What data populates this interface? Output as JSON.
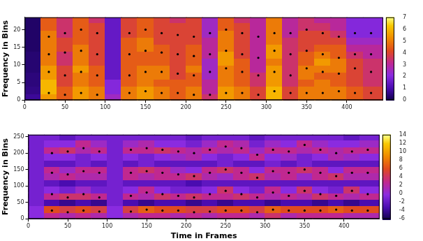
{
  "chart_data": [
    {
      "type": "heatmap",
      "ylabel": "Frequency in Bins",
      "grid": false,
      "xlim": [
        0,
        445
      ],
      "xticks": [
        0,
        50,
        100,
        150,
        200,
        250,
        300,
        350,
        400
      ],
      "ylim": [
        0,
        23.5
      ],
      "yticks": [
        0,
        5,
        10,
        15,
        20
      ],
      "heatmap": {
        "x_edges": [
          0,
          20,
          40,
          60,
          80,
          100,
          120,
          140,
          160,
          180,
          200,
          220,
          240,
          260,
          280,
          300,
          320,
          340,
          360,
          380,
          400,
          420,
          445
        ],
        "y_edges": [
          0,
          2,
          4,
          6,
          8,
          10,
          12,
          14,
          16,
          18,
          20,
          22,
          23.5
        ],
        "z": [
          [
            0.8,
            5.5,
            4.5,
            5.5,
            5,
            2.5,
            5,
            5.5,
            5,
            4.5,
            5,
            3.5,
            5.5,
            5,
            4,
            6,
            4,
            5,
            5,
            5,
            4.5,
            4
          ],
          [
            0.6,
            6,
            4.5,
            5.5,
            5,
            2,
            5,
            5.5,
            5,
            4.5,
            5,
            3,
            5.5,
            5,
            4,
            6,
            4,
            5,
            5,
            5,
            4.5,
            4
          ],
          [
            0.5,
            6,
            4,
            5,
            4.5,
            2,
            4.5,
            5,
            4.5,
            4.5,
            4.5,
            3,
            5,
            4.5,
            3.5,
            5.5,
            3.5,
            4.5,
            5,
            4.5,
            4,
            3.5
          ],
          [
            0.5,
            5.5,
            4,
            5,
            4.5,
            1.5,
            4.5,
            5,
            5,
            4,
            4.5,
            2.5,
            5,
            4.5,
            3.5,
            5.5,
            3.5,
            5,
            4.5,
            4.5,
            4,
            3.5
          ],
          [
            0.4,
            5.5,
            4,
            5.5,
            4.5,
            1.5,
            4.5,
            5,
            5,
            4,
            5,
            2.5,
            5,
            4.5,
            3,
            5.5,
            3.5,
            5,
            5,
            5,
            4,
            3.5
          ],
          [
            0.4,
            5,
            3.5,
            5,
            4,
            1.5,
            4.5,
            4.5,
            4.5,
            4,
            4.5,
            2.5,
            5.5,
            4.5,
            3,
            5,
            3.5,
            4.5,
            5.5,
            5,
            4,
            3.5
          ],
          [
            0.4,
            5,
            3.5,
            5,
            4,
            1.5,
            4.5,
            4.5,
            4.5,
            4,
            4.5,
            3,
            5.5,
            4,
            3,
            5.5,
            3.5,
            4.5,
            5,
            4.5,
            3.5,
            3
          ],
          [
            0.3,
            5,
            4,
            5,
            4,
            1.5,
            4.5,
            5,
            4.5,
            4,
            4.5,
            3,
            5,
            4,
            3,
            5.5,
            3.5,
            4,
            4.5,
            4.5,
            3,
            3
          ],
          [
            0.3,
            5,
            4,
            4.5,
            4,
            1.5,
            4.5,
            5,
            4,
            4,
            4,
            3,
            5,
            4,
            3,
            5,
            3.5,
            4,
            4,
            4,
            2.5,
            2.5
          ],
          [
            0.3,
            5,
            3.5,
            4.5,
            4,
            1.5,
            4,
            4.5,
            4,
            4,
            4,
            2.5,
            5,
            4,
            3,
            5,
            3,
            4,
            4,
            3.5,
            2,
            2
          ],
          [
            0.3,
            4.5,
            3.5,
            4.5,
            4,
            1.5,
            4,
            4.5,
            4,
            4,
            4,
            2.5,
            4.5,
            4,
            3,
            5,
            3,
            3.5,
            3.5,
            3,
            2,
            2
          ],
          [
            0.3,
            4.5,
            3.5,
            4.5,
            3.5,
            1.5,
            4,
            4.5,
            4,
            3.5,
            4,
            2.5,
            4.5,
            3.5,
            3,
            5,
            3,
            3.5,
            3,
            3,
            2,
            2
          ]
        ],
        "range": [
          0,
          7
        ],
        "ticks": [
          0,
          1,
          2,
          3,
          4,
          5,
          6,
          7
        ]
      },
      "x": [
        10,
        30,
        50,
        70,
        90,
        110,
        130,
        150,
        170,
        190,
        210,
        230,
        250,
        270,
        290,
        310,
        330,
        350,
        370,
        390,
        410,
        430
      ],
      "series": [
        {
          "color": "#000000",
          "marker": "dot",
          "values": [
            null,
            2,
            1.5,
            2,
            1.5,
            null,
            2,
            2.5,
            2,
            2,
            1.5,
            1.5,
            2,
            2,
            1.5,
            2.5,
            2,
            2,
            2,
            2.5,
            2,
            2
          ]
        },
        {
          "color": "#000000",
          "marker": "dot",
          "values": [
            null,
            8,
            7,
            8,
            7,
            null,
            7,
            8,
            8,
            7.5,
            7,
            8,
            9,
            8,
            7,
            8,
            7,
            9,
            8,
            7.5,
            9,
            8
          ]
        },
        {
          "color": "#000000",
          "marker": "dot",
          "values": [
            null,
            13,
            13.5,
            14,
            13,
            null,
            13,
            14,
            13.5,
            13,
            12.5,
            13,
            14,
            13,
            12,
            14,
            13,
            14,
            13,
            12,
            13,
            13
          ]
        },
        {
          "color": "#000000",
          "marker": "dot",
          "values": [
            null,
            18,
            19,
            20,
            19,
            null,
            19,
            20,
            19,
            18.5,
            18,
            19,
            20,
            19,
            18,
            19,
            19,
            20,
            19,
            18,
            19,
            19
          ]
        }
      ]
    },
    {
      "type": "heatmap",
      "ylabel": "Frequency in Bins",
      "xlabel": "Time in Frames",
      "grid": false,
      "xlim": [
        0,
        445
      ],
      "xticks": [
        0,
        50,
        100,
        150,
        200,
        250,
        300,
        350,
        400
      ],
      "ylim": [
        0,
        256
      ],
      "yticks": [
        0,
        50,
        100,
        150,
        200,
        250
      ],
      "heatmap": {
        "x_edges": [
          0,
          20,
          40,
          60,
          80,
          100,
          120,
          140,
          160,
          180,
          200,
          220,
          240,
          260,
          280,
          300,
          320,
          340,
          360,
          380,
          400,
          420,
          445
        ],
        "y_edges": [
          0,
          20,
          40,
          60,
          80,
          100,
          120,
          140,
          160,
          180,
          200,
          220,
          240,
          256
        ],
        "z": [
          [
            0,
            3,
            2,
            3,
            2,
            0,
            2,
            3,
            3,
            2,
            3,
            2,
            3,
            3,
            2,
            4,
            2,
            3,
            3,
            3,
            2,
            2
          ],
          [
            0,
            6,
            5,
            6,
            5,
            0,
            5,
            7,
            6,
            6,
            5,
            5,
            6,
            6,
            5,
            7,
            6,
            6,
            6,
            7,
            6,
            6
          ],
          [
            -1,
            -3,
            -4,
            -3,
            -4,
            -1,
            -3,
            -4,
            -3,
            -3,
            -4,
            -3,
            -4,
            -3,
            -3,
            -4,
            -3,
            -3,
            -4,
            -3,
            -4,
            -3
          ],
          [
            -1,
            3,
            4,
            4,
            3,
            -1,
            3,
            2,
            4,
            3,
            4,
            3,
            3,
            4,
            3,
            2,
            3,
            2,
            4,
            3,
            2,
            3
          ],
          [
            -1,
            0,
            -1,
            1,
            -1,
            -1,
            0,
            3,
            0,
            -1,
            -1,
            0,
            4,
            0,
            -1,
            3,
            0,
            4,
            0,
            -1,
            4,
            0
          ],
          [
            -1,
            -2,
            -3,
            -2,
            -2,
            -1,
            -2,
            -2,
            -2,
            -2,
            -3,
            -2,
            -2,
            -2,
            -2,
            -2,
            -2,
            -2,
            -2,
            -2,
            -2,
            -2
          ],
          [
            -1,
            2,
            3,
            2,
            2,
            -1,
            3,
            2,
            3,
            3,
            4,
            2,
            1,
            3,
            4,
            2,
            3,
            1,
            3,
            4,
            2,
            2
          ],
          [
            -1,
            3,
            1,
            3,
            3,
            -1,
            3,
            4,
            3,
            1,
            0,
            3,
            4,
            3,
            0,
            3,
            3,
            4,
            3,
            0,
            3,
            3
          ],
          [
            -1,
            -2,
            -2,
            -1,
            -2,
            -1,
            -2,
            -1,
            -2,
            -2,
            -2,
            -2,
            -1,
            -2,
            -2,
            -1,
            -2,
            -1,
            -2,
            -2,
            -2,
            -2
          ],
          [
            -1,
            0,
            0,
            -1,
            0,
            -1,
            0,
            -1,
            0,
            1,
            2,
            0,
            -1,
            0,
            3,
            0,
            1,
            -1,
            0,
            2,
            1,
            0
          ],
          [
            -1,
            3,
            4,
            2,
            3,
            -1,
            3,
            3,
            4,
            3,
            2,
            3,
            2,
            3,
            1,
            3,
            3,
            2,
            3,
            2,
            3,
            3
          ],
          [
            -1,
            0,
            0,
            3,
            1,
            -1,
            1,
            2,
            0,
            0,
            -1,
            1,
            3,
            2,
            -1,
            1,
            0,
            3,
            1,
            0,
            0,
            1
          ],
          [
            -1,
            -1,
            -2,
            -1,
            -1,
            -1,
            -1,
            -1,
            -1,
            -1,
            -2,
            -1,
            -1,
            -1,
            -2,
            -1,
            -1,
            -1,
            -1,
            -1,
            -2,
            -1
          ]
        ],
        "range": [
          -6,
          14
        ],
        "ticks": [
          -6,
          -4,
          -2,
          0,
          2,
          4,
          6,
          8,
          10,
          12,
          14
        ]
      },
      "x": [
        10,
        30,
        50,
        70,
        90,
        110,
        130,
        150,
        170,
        190,
        210,
        230,
        250,
        270,
        290,
        310,
        330,
        350,
        370,
        390,
        410,
        430
      ],
      "series": [
        {
          "color": "#000000",
          "marker": "dot",
          "values": [
            null,
            25,
            20,
            25,
            22,
            null,
            22,
            28,
            25,
            25,
            20,
            22,
            25,
            25,
            20,
            28,
            25,
            25,
            25,
            28,
            25,
            25
          ]
        },
        {
          "color": "#000000",
          "marker": "dot",
          "values": [
            null,
            75,
            65,
            75,
            65,
            null,
            70,
            80,
            75,
            70,
            65,
            75,
            85,
            75,
            65,
            80,
            70,
            85,
            75,
            70,
            85,
            75
          ]
        },
        {
          "color": "#000000",
          "marker": "dot",
          "values": [
            null,
            140,
            135,
            145,
            140,
            null,
            140,
            145,
            140,
            135,
            130,
            140,
            150,
            140,
            125,
            145,
            140,
            150,
            140,
            130,
            140,
            140
          ]
        },
        {
          "color": "#000000",
          "marker": "dot",
          "values": [
            null,
            200,
            205,
            215,
            205,
            null,
            210,
            215,
            210,
            205,
            200,
            210,
            220,
            215,
            195,
            210,
            205,
            225,
            210,
            200,
            205,
            210
          ]
        }
      ]
    }
  ]
}
